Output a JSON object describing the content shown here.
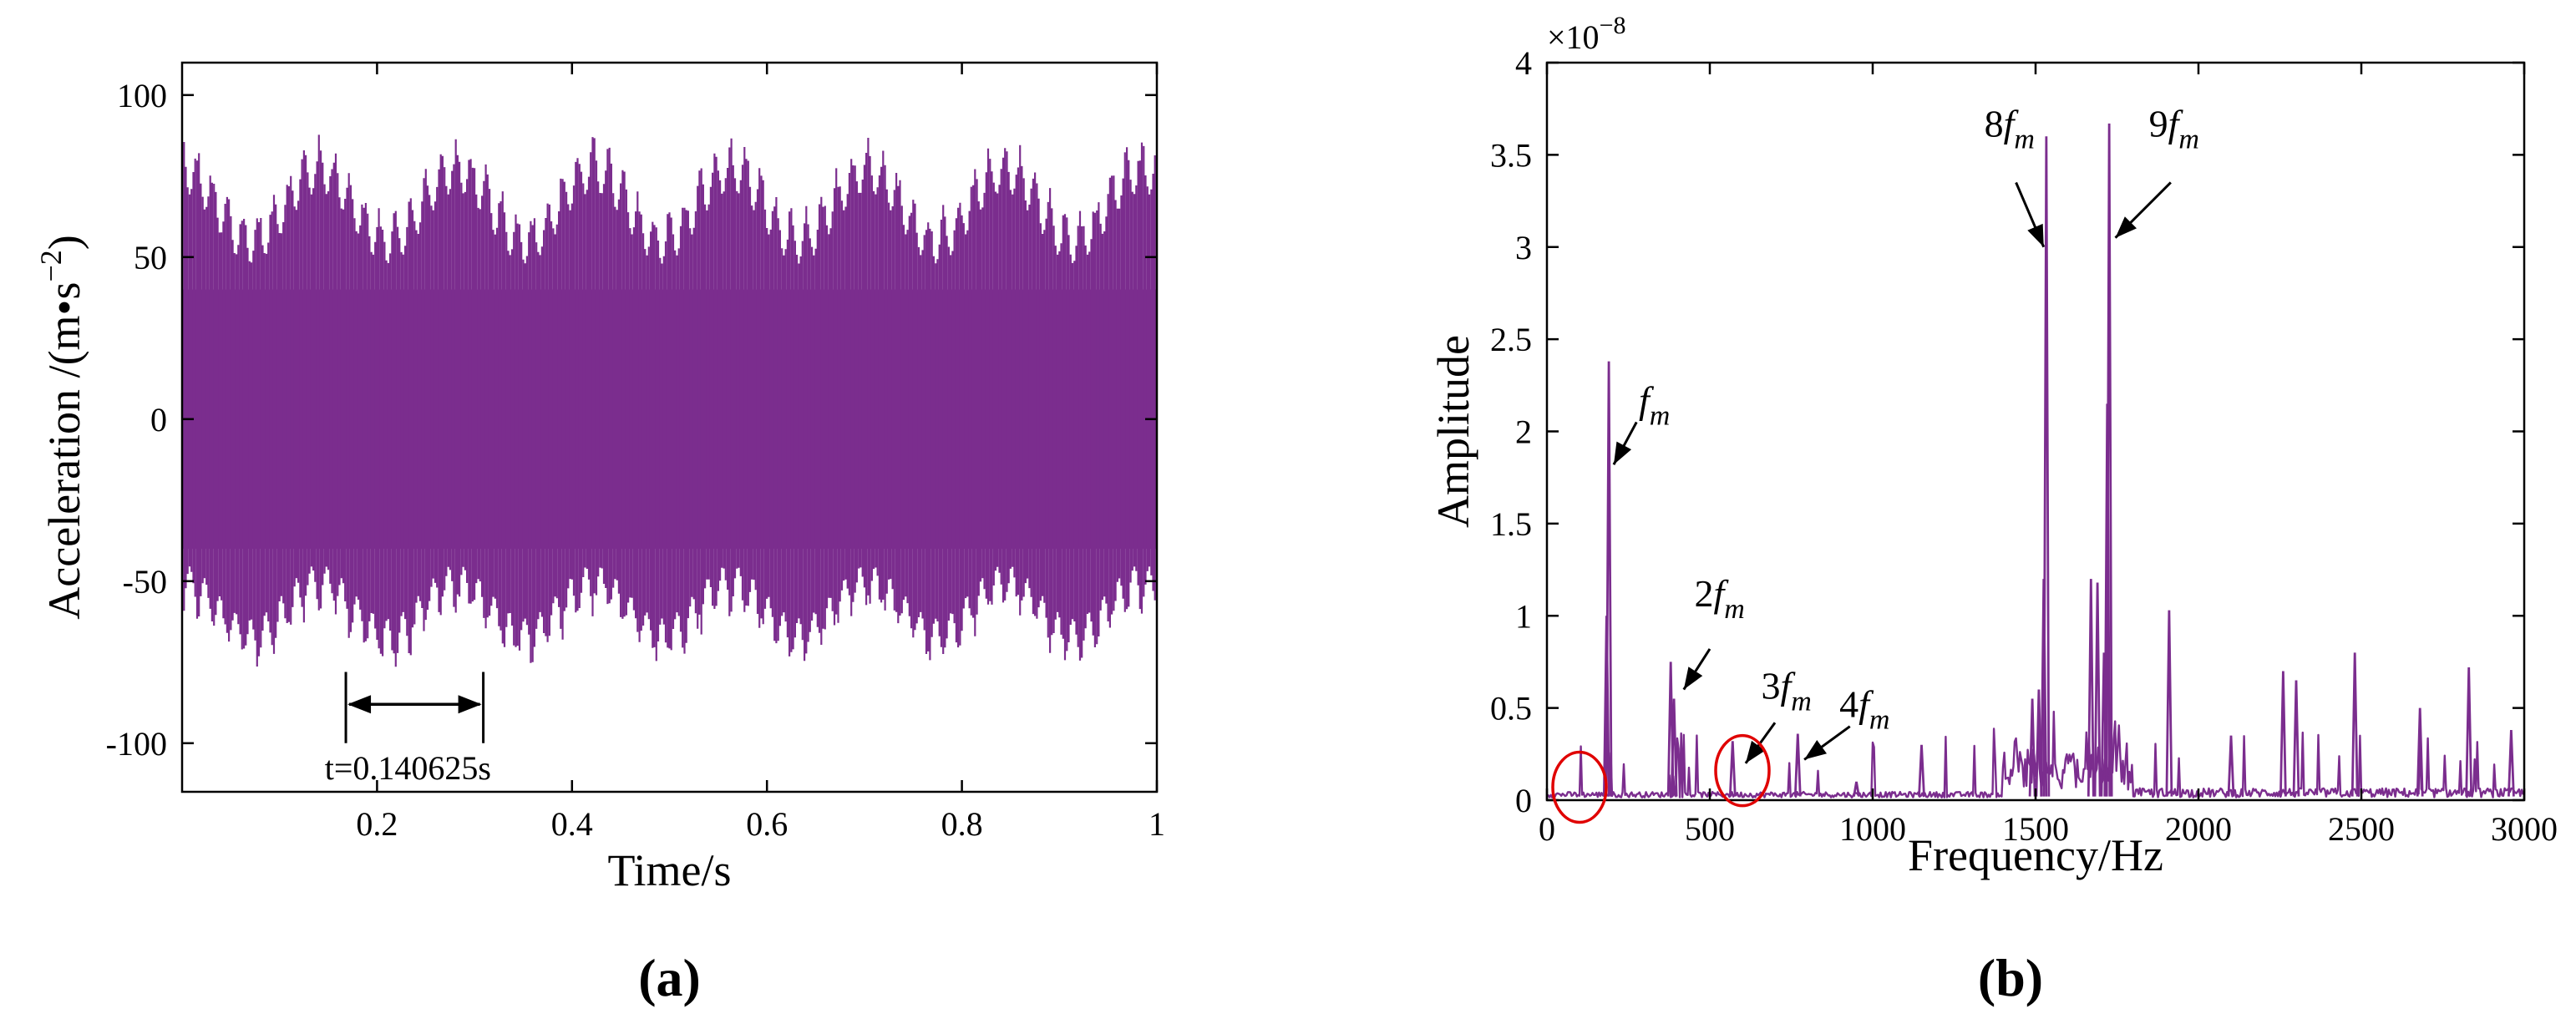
{
  "panels": {
    "a": {
      "label": "(a)"
    },
    "b": {
      "label": "(b)"
    }
  },
  "colors": {
    "signal": "#7B2D8E",
    "axis": "#000000",
    "marker": "#E00000"
  },
  "chart_data": [
    {
      "id": "a",
      "type": "line",
      "title": "",
      "xlabel": "Time/s",
      "ylabel": "Acceleration /(m•s",
      "ylabel_exponent": "−2",
      "ylabel_suffix": ")",
      "xlim": [
        0,
        1
      ],
      "ylim": [
        -115,
        110
      ],
      "xticks": [
        0.2,
        0.4,
        0.6,
        0.8,
        1
      ],
      "xtick_labels": [
        "0.2",
        "0.4",
        "0.6",
        "0.8",
        "1"
      ],
      "yticks": [
        100,
        50,
        0,
        -50,
        -100
      ],
      "ytick_labels": [
        "100",
        "50",
        "0",
        "-50",
        "-100"
      ],
      "grid": false,
      "series": [
        {
          "name": "acceleration",
          "description_of_shape": "high-frequency vibration signal, envelope roughly ±50 with peaks to about +88 / -78, modulated with period 0.140625 s",
          "envelope": {
            "upper_min": 48,
            "upper_max": 88,
            "lower_min": -45,
            "lower_max": -78,
            "modulation_period": 0.140625,
            "dense_band": 30
          }
        }
      ],
      "annotation": {
        "text": "t=0.140625s",
        "x_start": 0.168,
        "x_end": 0.309,
        "y": -88
      }
    },
    {
      "id": "b",
      "type": "line",
      "title": "",
      "xlabel": "Frequency/Hz",
      "ylabel": "Amplitude",
      "scale_label": "×10",
      "scale_exponent": "−8",
      "xlim": [
        0,
        3000
      ],
      "ylim": [
        0,
        4
      ],
      "xticks": [
        0,
        500,
        1000,
        1500,
        2000,
        2500,
        3000
      ],
      "xtick_labels": [
        "0",
        "500",
        "1000",
        "1500",
        "2000",
        "2500",
        "3000"
      ],
      "yticks": [
        0,
        0.5,
        1,
        1.5,
        2,
        2.5,
        3,
        3.5,
        4
      ],
      "ytick_labels": [
        "0",
        "0.5",
        "1",
        "1.5",
        "2",
        "2.5",
        "3",
        "3.5",
        "4"
      ],
      "grid": false,
      "peaks": [
        {
          "x": 190,
          "y": 2.38
        },
        {
          "x": 183,
          "y": 1.0
        },
        {
          "x": 380,
          "y": 0.75
        },
        {
          "x": 390,
          "y": 0.55
        },
        {
          "x": 570,
          "y": 0.32
        },
        {
          "x": 770,
          "y": 0.36
        },
        {
          "x": 950,
          "y": 0.1
        },
        {
          "x": 1150,
          "y": 0.3
        },
        {
          "x": 1490,
          "y": 0.55
        },
        {
          "x": 1510,
          "y": 0.6
        },
        {
          "x": 1525,
          "y": 1.2
        },
        {
          "x": 1533,
          "y": 3.6
        },
        {
          "x": 1670,
          "y": 1.2
        },
        {
          "x": 1690,
          "y": 1.18
        },
        {
          "x": 1710,
          "y": 0.8
        },
        {
          "x": 1720,
          "y": 2.15
        },
        {
          "x": 1726,
          "y": 3.67
        },
        {
          "x": 1910,
          "y": 1.03
        },
        {
          "x": 2100,
          "y": 0.35
        },
        {
          "x": 2260,
          "y": 0.7
        },
        {
          "x": 2300,
          "y": 0.65
        },
        {
          "x": 2480,
          "y": 0.8
        },
        {
          "x": 2680,
          "y": 0.5
        },
        {
          "x": 2830,
          "y": 0.72
        },
        {
          "x": 2960,
          "y": 0.38
        }
      ],
      "annotations": [
        {
          "pre": "",
          "sub": "m",
          "text_x": 330,
          "text_y": 2.1,
          "arrow_from": [
            275,
            2.05
          ],
          "arrow_to": [
            205,
            1.82
          ]
        },
        {
          "pre": "2",
          "sub": "m",
          "text_x": 530,
          "text_y": 1.05,
          "arrow_from": [
            500,
            0.82
          ],
          "arrow_to": [
            420,
            0.6
          ]
        },
        {
          "pre": "3",
          "sub": "m",
          "text_x": 735,
          "text_y": 0.55,
          "arrow_from": [
            700,
            0.42
          ],
          "arrow_to": [
            610,
            0.2
          ]
        },
        {
          "pre": "4",
          "sub": "m",
          "text_x": 975,
          "text_y": 0.45,
          "arrow_from": [
            930,
            0.4
          ],
          "arrow_to": [
            790,
            0.22
          ]
        },
        {
          "pre": "8",
          "sub": "m",
          "text_x": 1420,
          "text_y": 3.6,
          "arrow_from": [
            1440,
            3.35
          ],
          "arrow_to": [
            1525,
            3.0
          ]
        },
        {
          "pre": "9",
          "sub": "m",
          "text_x": 1925,
          "text_y": 3.6,
          "arrow_from": [
            1915,
            3.35
          ],
          "arrow_to": [
            1745,
            3.05
          ]
        }
      ],
      "circles": [
        {
          "cx": 100,
          "cy": 0.07
        },
        {
          "cx": 600,
          "cy": 0.16
        }
      ]
    }
  ]
}
